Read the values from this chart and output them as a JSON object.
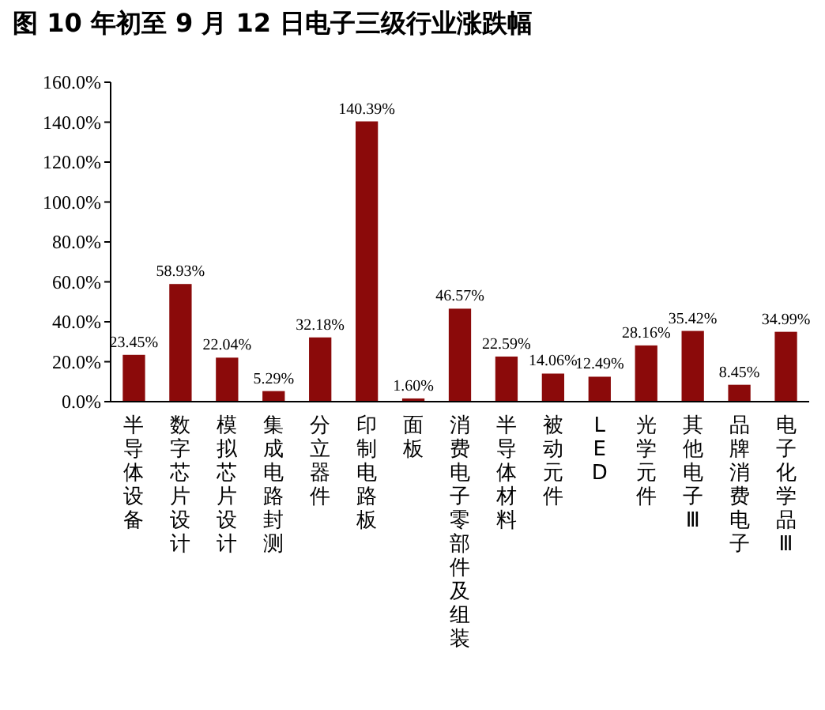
{
  "chart_data": {
    "type": "bar",
    "title": "图 10 年初至 9 月 12 日电子三级行业涨跌幅",
    "categories": [
      "半导体设备",
      "数字芯片设计",
      "模拟芯片设计",
      "集成电路封测",
      "分立器件",
      "印制电路板",
      "面板",
      "消费电子零部件及组装",
      "半导体材料",
      "被动元件",
      "LED",
      "光学元件",
      "其他电子Ⅲ",
      "品牌消费电子",
      "电子化学品Ⅲ"
    ],
    "values": [
      23.45,
      58.93,
      22.04,
      5.29,
      32.18,
      140.39,
      1.6,
      46.57,
      22.59,
      14.06,
      12.49,
      28.16,
      35.42,
      8.45,
      34.99
    ],
    "value_labels": [
      "23.45%",
      "58.93%",
      "22.04%",
      "5.29%",
      "32.18%",
      "140.39%",
      "1.60%",
      "46.57%",
      "22.59%",
      "14.06%",
      "12.49%",
      "28.16%",
      "35.42%",
      "8.45%",
      "34.99%"
    ],
    "color": "#8b0a0a",
    "ylim": [
      0,
      160
    ],
    "yticks": [
      {
        "value": 0,
        "label": "0.0%"
      },
      {
        "value": 20,
        "label": "20.0%"
      },
      {
        "value": 40,
        "label": "40.0%"
      },
      {
        "value": 60,
        "label": "60.0%"
      },
      {
        "value": 80,
        "label": "80.0%"
      },
      {
        "value": 100,
        "label": "100.0%"
      },
      {
        "value": 120,
        "label": "120.0%"
      },
      {
        "value": 140,
        "label": "140.0%"
      },
      {
        "value": 160,
        "label": "160.0%"
      }
    ],
    "grid": false
  }
}
